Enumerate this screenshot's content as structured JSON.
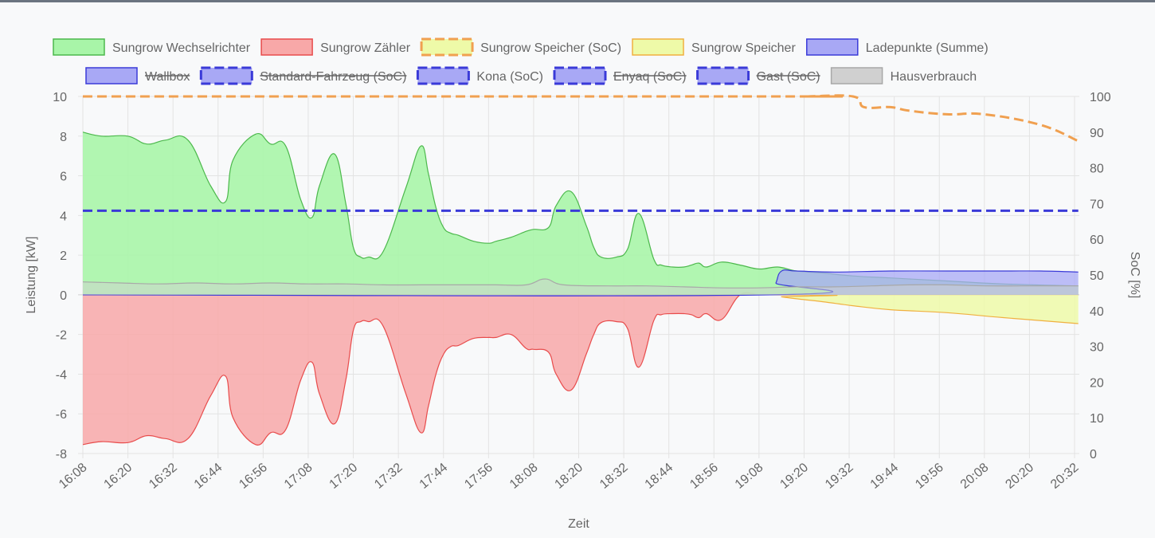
{
  "chart_data": {
    "type": "area",
    "title": "",
    "xlabel": "Zeit",
    "ylabel": "Leistung [kW]",
    "y2label": "SoC [%]",
    "ylim": [
      -8,
      10
    ],
    "y2lim": [
      0,
      100
    ],
    "grid": true,
    "legend_position": "top",
    "x_ticks": [
      "16:08",
      "16:20",
      "16:32",
      "16:44",
      "16:56",
      "17:08",
      "17:20",
      "17:32",
      "17:44",
      "17:56",
      "18:08",
      "18:20",
      "18:32",
      "18:44",
      "18:56",
      "19:08",
      "19:20",
      "19:32",
      "19:44",
      "19:56",
      "20:08",
      "20:20",
      "20:32"
    ],
    "y_ticks": [
      "10",
      "8",
      "6",
      "4",
      "2",
      "0",
      "-2",
      "-4",
      "-6",
      "-8"
    ],
    "y2_ticks": [
      "100",
      "90",
      "80",
      "70",
      "60",
      "50",
      "40",
      "30",
      "20",
      "10",
      "0"
    ],
    "legend": [
      {
        "name": "Sungrow Wechselrichter",
        "fill": "#a8f5a8",
        "stroke": "#4cb84c",
        "dashed": false,
        "hidden": false
      },
      {
        "name": "Sungrow Zähler",
        "fill": "#f8a8a8",
        "stroke": "#e84c4c",
        "dashed": false,
        "hidden": false
      },
      {
        "name": "Sungrow Speicher (SoC)",
        "fill": "#eefaa8",
        "stroke": "#f0a050",
        "dashed": true,
        "hidden": false
      },
      {
        "name": "Sungrow Speicher",
        "fill": "#eefaa8",
        "stroke": "#f0b040",
        "dashed": false,
        "hidden": false
      },
      {
        "name": "Ladepunkte (Summe)",
        "fill": "#a8a8f5",
        "stroke": "#3a3ad8",
        "dashed": false,
        "hidden": false
      },
      {
        "name": "Wallbox",
        "fill": "#a8a8f5",
        "stroke": "#3a3ad8",
        "dashed": false,
        "hidden": true
      },
      {
        "name": "Standard-Fahrzeug (SoC)",
        "fill": "#a8a8f5",
        "stroke": "#3a3ad8",
        "dashed": true,
        "hidden": true
      },
      {
        "name": "Kona (SoC)",
        "fill": "#a8a8f5",
        "stroke": "#3a3ad8",
        "dashed": true,
        "hidden": false
      },
      {
        "name": "Enyaq (SoC)",
        "fill": "#a8a8f5",
        "stroke": "#3a3ad8",
        "dashed": true,
        "hidden": true
      },
      {
        "name": "Gast (SoC)",
        "fill": "#a8a8f5",
        "stroke": "#3a3ad8",
        "dashed": true,
        "hidden": true
      },
      {
        "name": "Hausverbrauch",
        "fill": "#d0d0d0",
        "stroke": "#a8a8a8",
        "dashed": false,
        "hidden": false
      }
    ],
    "series": [
      {
        "name": "Sungrow Wechselrichter",
        "axis": "y",
        "type": "area",
        "color": "#4cb84c",
        "fill": "#a8f5a8",
        "x": [
          0,
          5,
          12,
          17,
          22,
          28,
          34,
          38,
          40,
          46,
          50,
          54,
          58,
          61,
          63,
          67,
          70,
          72,
          74,
          76,
          80,
          86,
          90,
          92,
          94,
          96,
          98,
          100,
          104,
          108,
          110,
          114,
          118,
          120,
          124,
          126,
          130,
          134,
          136,
          138,
          142,
          145,
          148,
          152,
          154,
          157,
          160,
          162,
          164,
          166,
          170,
          175,
          180,
          185,
          190,
          197,
          205,
          215,
          230,
          245,
          265
        ],
        "y": [
          8.2,
          8.0,
          8.0,
          7.6,
          7.8,
          7.8,
          5.5,
          4.7,
          6.8,
          8.1,
          7.6,
          7.5,
          4.8,
          3.9,
          5.5,
          7.1,
          4.6,
          2.4,
          1.9,
          1.9,
          2.2,
          5.4,
          7.5,
          6.1,
          4.4,
          3.4,
          3.1,
          3.0,
          2.7,
          2.6,
          2.7,
          2.9,
          3.2,
          3.3,
          3.4,
          4.5,
          5.2,
          3.5,
          2.4,
          1.9,
          1.9,
          2.3,
          4.1,
          1.8,
          1.5,
          1.4,
          1.4,
          1.5,
          1.6,
          1.4,
          1.65,
          1.5,
          1.3,
          1.4,
          1.2,
          1.1,
          0.95,
          0.85,
          0.7,
          0.55,
          0.45
        ]
      },
      {
        "name": "Sungrow Zähler",
        "axis": "y",
        "type": "area",
        "color": "#e84c4c",
        "fill": "#f8a8a8",
        "x": [
          0,
          5,
          12,
          17,
          22,
          28,
          34,
          38,
          40,
          46,
          50,
          54,
          58,
          61,
          63,
          67,
          70,
          72,
          74,
          76,
          80,
          86,
          90,
          92,
          94,
          96,
          98,
          100,
          104,
          108,
          110,
          114,
          118,
          120,
          124,
          126,
          130,
          134,
          136,
          138,
          142,
          145,
          148,
          152,
          154,
          157,
          160,
          162,
          164,
          166,
          170,
          175,
          180,
          185,
          190,
          197,
          205,
          215,
          230,
          245,
          265
        ],
        "y": [
          -7.55,
          -7.4,
          -7.45,
          -7.1,
          -7.25,
          -7.25,
          -5.1,
          -4.1,
          -6.2,
          -7.55,
          -6.95,
          -6.8,
          -4.3,
          -3.4,
          -5.0,
          -6.5,
          -4.3,
          -1.8,
          -1.35,
          -1.35,
          -1.6,
          -5.0,
          -6.95,
          -5.6,
          -4.0,
          -3.0,
          -2.6,
          -2.55,
          -2.2,
          -2.15,
          -2.15,
          -2.0,
          -2.7,
          -2.75,
          -2.9,
          -4.0,
          -4.8,
          -3.0,
          -2.0,
          -1.4,
          -1.35,
          -1.7,
          -3.65,
          -1.3,
          -1.0,
          -0.95,
          -0.95,
          -1.0,
          -1.15,
          -0.95,
          -1.25,
          0.0,
          0.0,
          0.0,
          0.0,
          0.0,
          0.0,
          0.0,
          0.0,
          0.0,
          0.0
        ]
      },
      {
        "name": "Sungrow Speicher",
        "axis": "y",
        "type": "area",
        "color": "#f0b040",
        "fill": "#eefaa8",
        "x": [
          0,
          184,
          186,
          190,
          197,
          205,
          215,
          230,
          245,
          265
        ],
        "y": [
          0,
          0,
          -0.1,
          -0.2,
          -0.35,
          -0.55,
          -0.75,
          -0.9,
          -1.15,
          -1.45
        ]
      },
      {
        "name": "Ladepunkte (Summe)",
        "axis": "y",
        "type": "area",
        "color": "#3a3ad8",
        "fill": "#a8a8f5",
        "x": [
          0,
          183,
          184.5,
          186,
          190,
          200,
          215,
          230,
          245,
          255,
          265
        ],
        "y": [
          0,
          0,
          0.6,
          1.2,
          1.2,
          1.15,
          1.2,
          1.2,
          1.2,
          1.2,
          1.15
        ]
      },
      {
        "name": "Hausverbrauch",
        "axis": "y",
        "type": "area",
        "color": "#a8a8a8",
        "fill": "#d0d0d0",
        "x": [
          0,
          10,
          20,
          30,
          40,
          50,
          60,
          70,
          80,
          90,
          100,
          110,
          118,
          123,
          128,
          140,
          150,
          160,
          170,
          180,
          190,
          200,
          210,
          220,
          230,
          240,
          250,
          265
        ],
        "y": [
          0.65,
          0.6,
          0.55,
          0.6,
          0.55,
          0.6,
          0.55,
          0.55,
          0.5,
          0.5,
          0.5,
          0.5,
          0.5,
          0.8,
          0.5,
          0.45,
          0.45,
          0.4,
          0.35,
          0.35,
          0.4,
          0.4,
          0.45,
          0.5,
          0.5,
          0.45,
          0.45,
          0.45
        ]
      },
      {
        "name": "Sungrow Speicher (SoC)",
        "axis": "y2",
        "type": "line",
        "color": "#f0a050",
        "dashed": true,
        "x": [
          0,
          184,
          192,
          205,
          208,
          215,
          220,
          230,
          240,
          255,
          265
        ],
        "y": [
          100,
          100,
          100,
          100,
          97,
          97,
          96,
          95,
          95,
          92,
          87.5
        ]
      },
      {
        "name": "Kona (SoC)",
        "axis": "y2",
        "type": "line",
        "color": "#3a3ad8",
        "dashed": true,
        "x": [
          0,
          265
        ],
        "y": [
          68,
          68
        ]
      }
    ]
  }
}
